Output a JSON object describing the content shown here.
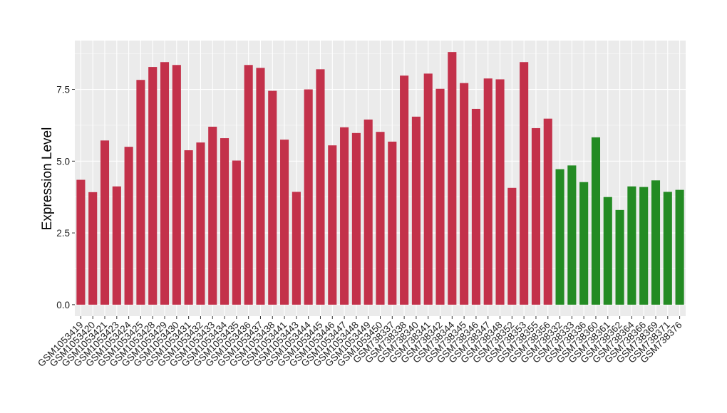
{
  "chart_data": {
    "type": "bar",
    "title": "",
    "xlabel": "",
    "ylabel": "Expression Level",
    "ylim": [
      -0.4,
      9.2
    ],
    "yticks": [
      0.0,
      2.5,
      5.0,
      7.5
    ],
    "ytick_labels": [
      "0.0",
      "2.5",
      "5.0",
      "7.5"
    ],
    "grid": true,
    "legend": "none",
    "colors": {
      "red": "#c3314a",
      "green": "#238b23",
      "panel": "#ebebeb",
      "grid": "#ffffff"
    },
    "categories": [
      "GSM1053419",
      "GSM1053420",
      "GSM1053421",
      "GSM1053423",
      "GSM1053424",
      "GSM1053425",
      "GSM1053428",
      "GSM1053429",
      "GSM1053430",
      "GSM1053431",
      "GSM1053432",
      "GSM1053433",
      "GSM1053434",
      "GSM1053435",
      "GSM1053436",
      "GSM1053437",
      "GSM1053438",
      "GSM1053441",
      "GSM1053443",
      "GSM1053444",
      "GSM1053445",
      "GSM1053446",
      "GSM1053447",
      "GSM1053448",
      "GSM1053449",
      "GSM1053450",
      "GSM738337",
      "GSM738338",
      "GSM738340",
      "GSM738341",
      "GSM738342",
      "GSM738344",
      "GSM738345",
      "GSM738346",
      "GSM738347",
      "GSM738348",
      "GSM738352",
      "GSM738353",
      "GSM738355",
      "GSM738356",
      "GSM738332",
      "GSM738333",
      "GSM738336",
      "GSM738360",
      "GSM738361",
      "GSM738362",
      "GSM738364",
      "GSM738366",
      "GSM738369",
      "GSM738371",
      "GSM738376"
    ],
    "values": [
      4.35,
      3.92,
      5.72,
      4.12,
      5.5,
      7.83,
      8.28,
      8.45,
      8.35,
      5.38,
      5.65,
      6.2,
      5.8,
      5.02,
      8.35,
      8.25,
      7.45,
      5.75,
      3.93,
      7.5,
      8.2,
      5.55,
      6.18,
      5.98,
      6.45,
      6.02,
      5.68,
      7.98,
      6.55,
      8.05,
      7.52,
      8.8,
      7.72,
      6.82,
      7.88,
      7.85,
      4.07,
      8.45,
      6.15,
      6.48,
      4.72,
      4.85,
      4.27,
      5.83,
      3.75,
      3.3,
      4.12,
      4.1,
      4.33,
      3.93,
      4.0
    ],
    "bar_colors": [
      "red",
      "red",
      "red",
      "red",
      "red",
      "red",
      "red",
      "red",
      "red",
      "red",
      "red",
      "red",
      "red",
      "red",
      "red",
      "red",
      "red",
      "red",
      "red",
      "red",
      "red",
      "red",
      "red",
      "red",
      "red",
      "red",
      "red",
      "red",
      "red",
      "red",
      "red",
      "red",
      "red",
      "red",
      "red",
      "red",
      "red",
      "red",
      "red",
      "red",
      "green",
      "green",
      "green",
      "green",
      "green",
      "green",
      "green",
      "green",
      "green",
      "green",
      "green"
    ]
  }
}
